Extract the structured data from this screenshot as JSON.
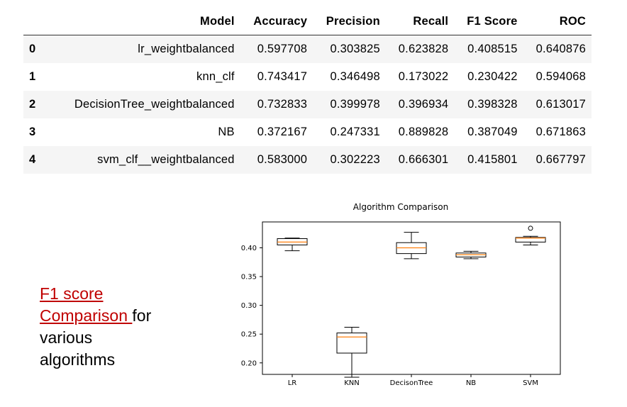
{
  "table": {
    "columns": [
      "",
      "Model",
      "Accuracy",
      "Precision",
      "Recall",
      "F1 Score",
      "ROC"
    ],
    "rows": [
      [
        "0",
        "lr_weightbalanced",
        "0.597708",
        "0.303825",
        "0.623828",
        "0.408515",
        "0.640876"
      ],
      [
        "1",
        "knn_clf",
        "0.743417",
        "0.346498",
        "0.173022",
        "0.230422",
        "0.594068"
      ],
      [
        "2",
        "DecisionTree_weightbalanced",
        "0.732833",
        "0.399978",
        "0.396934",
        "0.398328",
        "0.613017"
      ],
      [
        "3",
        "NB",
        "0.372167",
        "0.247331",
        "0.889828",
        "0.387049",
        "0.671863"
      ],
      [
        "4",
        "svm_clf__weightbalanced",
        "0.583000",
        "0.302223",
        "0.666301",
        "0.415801",
        "0.667797"
      ]
    ]
  },
  "caption": {
    "link_line1": "F1 score",
    "link_line2": "Comparison ",
    "rest_line2": "for",
    "line3": "various",
    "line4": "algorithms"
  },
  "colors": {
    "caption_link": "#c00000",
    "median": "#ff7f0e",
    "box": "#000000",
    "row_stripe": "#f5f5f5"
  },
  "chart_data": {
    "type": "box",
    "title": "Algorithm Comparison",
    "xlabel": "",
    "ylabel": "",
    "categories": [
      "LR",
      "KNN",
      "DecisonTree",
      "NB",
      "SVM"
    ],
    "ylim": [
      0.18,
      0.445
    ],
    "yticks": [
      0.2,
      0.25,
      0.3,
      0.35,
      0.4
    ],
    "boxes": [
      {
        "whisker_low": 0.395,
        "q1": 0.405,
        "median": 0.41,
        "q3": 0.416,
        "whisker_high": 0.417,
        "outliers": []
      },
      {
        "whisker_low": 0.175,
        "q1": 0.217,
        "median": 0.245,
        "q3": 0.252,
        "whisker_high": 0.262,
        "outliers": []
      },
      {
        "whisker_low": 0.381,
        "q1": 0.39,
        "median": 0.4,
        "q3": 0.409,
        "whisker_high": 0.427,
        "outliers": []
      },
      {
        "whisker_low": 0.381,
        "q1": 0.384,
        "median": 0.388,
        "q3": 0.391,
        "whisker_high": 0.394,
        "outliers": []
      },
      {
        "whisker_low": 0.405,
        "q1": 0.41,
        "median": 0.417,
        "q3": 0.418,
        "whisker_high": 0.42,
        "outliers": [
          0.434
        ]
      }
    ],
    "grid": false,
    "legend": "none"
  }
}
